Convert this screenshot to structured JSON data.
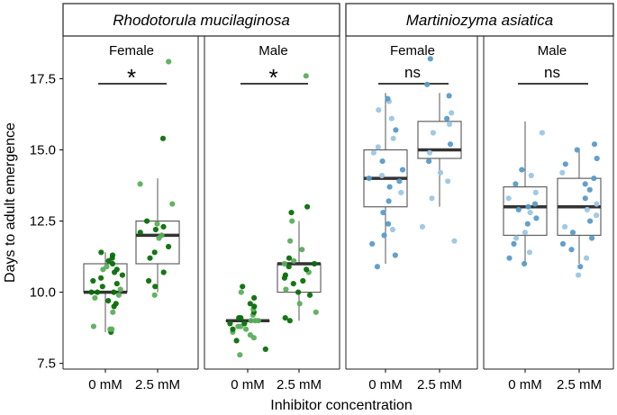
{
  "chart_data": {
    "type": "boxplot",
    "ylabel": "Days to adult emergence",
    "xlabel": "Inhibitor concentration",
    "ylim": [
      7.3,
      19.0
    ],
    "yticks": [
      7.5,
      10.0,
      12.5,
      15.0,
      17.5
    ],
    "ytick_labels": [
      "7.5",
      "10.0",
      "12.5",
      "15.0",
      "17.5"
    ],
    "categories": [
      "0 mM",
      "2.5 mM"
    ],
    "colors": {
      "green_point": "#0a6e0a",
      "green_point_light": "#5cae5c",
      "blue_point": "#5b9bc8",
      "blue_point_light": "#9dc6e3",
      "box_stroke": "#555555",
      "median": "#333333"
    },
    "facets": [
      {
        "species": "Rhodotorula mucilaginosa",
        "color": "green",
        "panels": [
          {
            "sex": "Female",
            "significance": "*",
            "groups": [
              {
                "label": "0 mM",
                "q1": 10.0,
                "median": 10.0,
                "q3": 11.0,
                "whisker_low": 8.6,
                "whisker_high": 11.4,
                "points": [
                  8.6,
                  8.7,
                  8.7,
                  8.8,
                  9.3,
                  9.5,
                  9.6,
                  9.7,
                  9.8,
                  9.9,
                  10.0,
                  10.0,
                  10.0,
                  10.1,
                  10.2,
                  10.3,
                  10.4,
                  10.5,
                  10.6,
                  10.7,
                  10.8,
                  10.8,
                  10.9,
                  11.0,
                  11.1,
                  11.2,
                  11.3,
                  11.4
                ]
              },
              {
                "label": "2.5 mM",
                "q1": 11.0,
                "median": 12.0,
                "q3": 12.5,
                "whisker_low": 10.0,
                "whisker_high": 14.0,
                "points": [
                  9.9,
                  10.2,
                  10.4,
                  10.7,
                  11.2,
                  11.4,
                  11.6,
                  11.9,
                  12.0,
                  12.1,
                  12.2,
                  12.3,
                  12.4,
                  12.5,
                  13.1,
                  13.8,
                  15.4,
                  18.1
                ]
              }
            ]
          },
          {
            "sex": "Male",
            "significance": "*",
            "groups": [
              {
                "label": "0 mM",
                "q1": 9.0,
                "median": 9.0,
                "q3": 9.0,
                "whisker_low": 9.0,
                "whisker_high": 9.0,
                "points": [
                  7.8,
                  8.0,
                  8.3,
                  8.4,
                  8.5,
                  8.6,
                  8.7,
                  8.7,
                  8.8,
                  8.8,
                  8.9,
                  8.9,
                  9.0,
                  9.0,
                  9.0,
                  9.1,
                  9.1,
                  9.2,
                  9.3,
                  9.4,
                  9.5,
                  9.6,
                  9.8,
                  10.0,
                  10.2
                ]
              },
              {
                "label": "2.5 mM",
                "q1": 10.0,
                "median": 11.0,
                "q3": 11.0,
                "whisker_low": 9.0,
                "whisker_high": 12.5,
                "points": [
                  9.0,
                  9.1,
                  9.3,
                  9.6,
                  9.9,
                  10.0,
                  10.1,
                  10.3,
                  10.4,
                  10.5,
                  10.6,
                  10.7,
                  10.8,
                  10.9,
                  11.0,
                  11.0,
                  11.1,
                  11.2,
                  11.5,
                  11.8,
                  12.5,
                  12.8,
                  13.0,
                  17.6
                ]
              }
            ]
          }
        ]
      },
      {
        "species": "Martiniozyma asiatica",
        "color": "blue",
        "panels": [
          {
            "sex": "Female",
            "significance": "ns",
            "groups": [
              {
                "label": "0 mM",
                "q1": 13.0,
                "median": 14.0,
                "q3": 15.0,
                "whisker_low": 11.0,
                "whisker_high": 17.0,
                "points": [
                  10.9,
                  11.3,
                  11.7,
                  12.0,
                  12.2,
                  12.4,
                  12.8,
                  13.2,
                  13.5,
                  13.7,
                  13.9,
                  14.0,
                  14.1,
                  14.3,
                  14.6,
                  14.9,
                  15.1,
                  15.4,
                  15.7,
                  16.1,
                  16.4,
                  16.7,
                  16.8
                ]
              },
              {
                "label": "2.5 mM",
                "q1": 14.7,
                "median": 15.0,
                "q3": 16.0,
                "whisker_low": 13.0,
                "whisker_high": 17.0,
                "points": [
                  11.8,
                  12.3,
                  13.3,
                  13.9,
                  14.2,
                  14.6,
                  14.9,
                  15.2,
                  15.6,
                  15.9,
                  16.1,
                  16.3,
                  16.9,
                  17.3,
                  18.2
                ]
              }
            ]
          },
          {
            "sex": "Male",
            "significance": "ns",
            "groups": [
              {
                "label": "0 mM",
                "q1": 12.0,
                "median": 13.0,
                "q3": 13.7,
                "whisker_low": 11.0,
                "whisker_high": 16.0,
                "points": [
                  11.0,
                  11.2,
                  11.4,
                  11.7,
                  11.9,
                  12.1,
                  12.4,
                  12.6,
                  12.8,
                  12.9,
                  13.0,
                  13.1,
                  13.3,
                  13.5,
                  13.8,
                  14.1,
                  14.3,
                  15.6
                ]
              },
              {
                "label": "2.5 mM",
                "q1": 12.0,
                "median": 13.0,
                "q3": 14.0,
                "whisker_low": 11.0,
                "whisker_high": 15.0,
                "points": [
                  10.6,
                  10.9,
                  11.2,
                  11.5,
                  11.7,
                  11.9,
                  12.1,
                  12.3,
                  12.5,
                  12.7,
                  12.9,
                  13.1,
                  13.3,
                  13.6,
                  13.8,
                  14.0,
                  14.2,
                  14.5,
                  14.7,
                  15.0,
                  15.2
                ]
              }
            ]
          }
        ]
      }
    ]
  }
}
